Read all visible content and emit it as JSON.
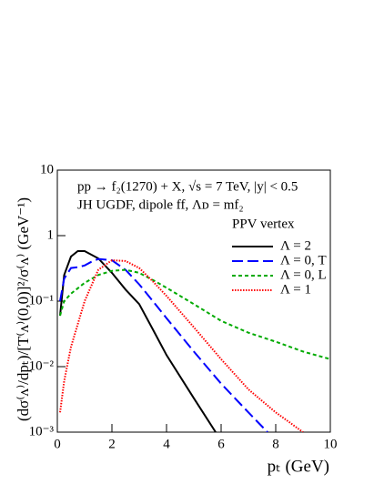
{
  "chart_data": {
    "type": "line",
    "ylabel": "(dσ⁽ᴧ⁾/dpₜ)/[T⁽ᴧ⁾(0,0)]²/σ⁽ᴧ⁾ (GeV⁻¹)",
    "xlabel": "pₜ (GeV)",
    "annotations": [
      "pp → f₂(1270) + X,  √s = 7 TeV,  |y| < 0.5",
      "JH UGDF, dipole ff, Λᴅ = mf₂"
    ],
    "legend_title": "PPV vertex",
    "legend_position": "upper right",
    "xlim": [
      0,
      10
    ],
    "xticks": [
      0,
      2,
      4,
      6,
      8,
      10
    ],
    "ylim": [
      0.001,
      10
    ],
    "log_y": true,
    "yticks": [
      {
        "value": 0.001,
        "label": "10⁻³"
      },
      {
        "value": 0.01,
        "label": "10⁻²"
      },
      {
        "value": 0.1,
        "label": "10⁻¹"
      },
      1,
      10
    ],
    "series": [
      {
        "name": "Λ = 2",
        "color": "#000000",
        "dash": "solid",
        "x": [
          0.1,
          0.25,
          0.5,
          0.75,
          1,
          1.5,
          2,
          2.5,
          3,
          3.5,
          4,
          5,
          5.8
        ],
        "values": [
          0.06,
          0.25,
          0.48,
          0.58,
          0.58,
          0.45,
          0.27,
          0.15,
          0.09,
          0.037,
          0.015,
          0.0033,
          0.001
        ]
      },
      {
        "name": "Λ = 0, T",
        "color": "#0000ff",
        "dash": "dashed",
        "x": [
          0.1,
          0.25,
          0.5,
          0.75,
          1,
          1.25,
          1.5,
          2,
          2.5,
          3,
          3.5,
          4,
          5,
          6,
          7,
          7.7
        ],
        "values": [
          0.1,
          0.22,
          0.32,
          0.33,
          0.35,
          0.4,
          0.44,
          0.42,
          0.3,
          0.18,
          0.1,
          0.055,
          0.017,
          0.0055,
          0.002,
          0.001
        ]
      },
      {
        "name": "Λ = 0, L",
        "color": "#00aa00",
        "dash": "dotted",
        "x": [
          0.1,
          0.25,
          0.5,
          1,
          1.5,
          2,
          2.5,
          3,
          3.5,
          4,
          5,
          6,
          7,
          8,
          9,
          10
        ],
        "values": [
          0.06,
          0.1,
          0.13,
          0.19,
          0.25,
          0.29,
          0.3,
          0.27,
          0.21,
          0.16,
          0.09,
          0.05,
          0.033,
          0.024,
          0.017,
          0.013
        ]
      },
      {
        "name": "Λ = 1",
        "color": "#ff0000",
        "dash": "fine",
        "x": [
          0.1,
          0.25,
          0.5,
          1,
          1.5,
          2,
          2.5,
          3,
          3.5,
          4,
          5,
          6,
          7,
          8,
          9
        ],
        "values": [
          0.002,
          0.006,
          0.02,
          0.1,
          0.3,
          0.42,
          0.41,
          0.32,
          0.2,
          0.12,
          0.04,
          0.013,
          0.0045,
          0.002,
          0.001
        ]
      }
    ]
  }
}
